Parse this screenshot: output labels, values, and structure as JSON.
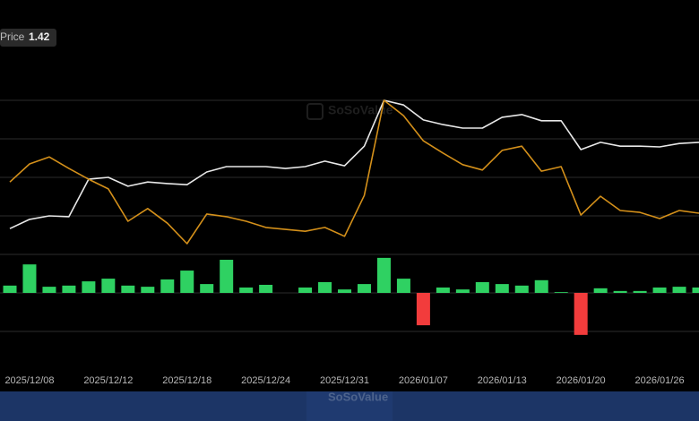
{
  "price_label": "Price",
  "price_value": 1.42,
  "watermark": "SoSoValue",
  "chart_data": {
    "type": "combo",
    "categories": [
      null,
      "2025/12/08",
      null,
      null,
      null,
      "2025/12/12",
      null,
      null,
      null,
      "2025/12/18",
      null,
      null,
      null,
      "2025/12/24",
      null,
      null,
      null,
      "2025/12/31",
      null,
      null,
      null,
      "2026/01/07",
      null,
      null,
      null,
      "2026/01/13",
      null,
      null,
      null,
      "2026/01/20",
      null,
      null,
      null,
      "2026/01/26",
      null,
      null
    ],
    "ylim": [
      -2,
      5.5
    ],
    "yticks": [
      -1,
      0,
      1,
      2,
      3,
      4,
      5
    ],
    "grid": true,
    "series": [
      {
        "type": "line",
        "color": "#e8e8e8",
        "values": [
          1.67,
          1.91,
          2.0,
          1.98,
          2.95,
          3.0,
          2.77,
          2.88,
          2.84,
          2.81,
          3.14,
          3.28,
          3.28,
          3.28,
          3.23,
          3.28,
          3.42,
          3.3,
          3.81,
          5.0,
          4.88,
          4.49,
          4.37,
          4.28,
          4.28,
          4.56,
          4.63,
          4.47,
          4.47,
          3.72,
          3.91,
          3.81,
          3.81,
          3.79,
          3.88,
          3.91
        ]
      },
      {
        "type": "line",
        "color": "#d4901a",
        "values": [
          2.88,
          3.35,
          3.53,
          3.23,
          2.95,
          2.7,
          1.86,
          2.19,
          1.81,
          1.28,
          2.05,
          1.98,
          1.86,
          1.7,
          1.65,
          1.6,
          1.7,
          1.47,
          2.53,
          5.0,
          4.6,
          3.95,
          3.63,
          3.33,
          3.19,
          3.7,
          3.81,
          3.16,
          3.28,
          2.02,
          2.51,
          2.14,
          2.09,
          1.93,
          2.14,
          2.07
        ]
      },
      {
        "type": "bar",
        "color": "#2fd162",
        "negative_color": "#f23c3c",
        "values": [
          0.19,
          0.74,
          0.16,
          0.19,
          0.3,
          0.37,
          0.19,
          0.16,
          0.35,
          0.58,
          0.23,
          0.86,
          0.14,
          0.21,
          0,
          0.14,
          0.28,
          0.09,
          0.23,
          0.91,
          0.37,
          -0.84,
          0.14,
          0.09,
          0.28,
          0.23,
          0.19,
          0.33,
          0.02,
          -1.09,
          0.12,
          0.05,
          0.05,
          0.14,
          0.16,
          0.14
        ]
      }
    ]
  }
}
